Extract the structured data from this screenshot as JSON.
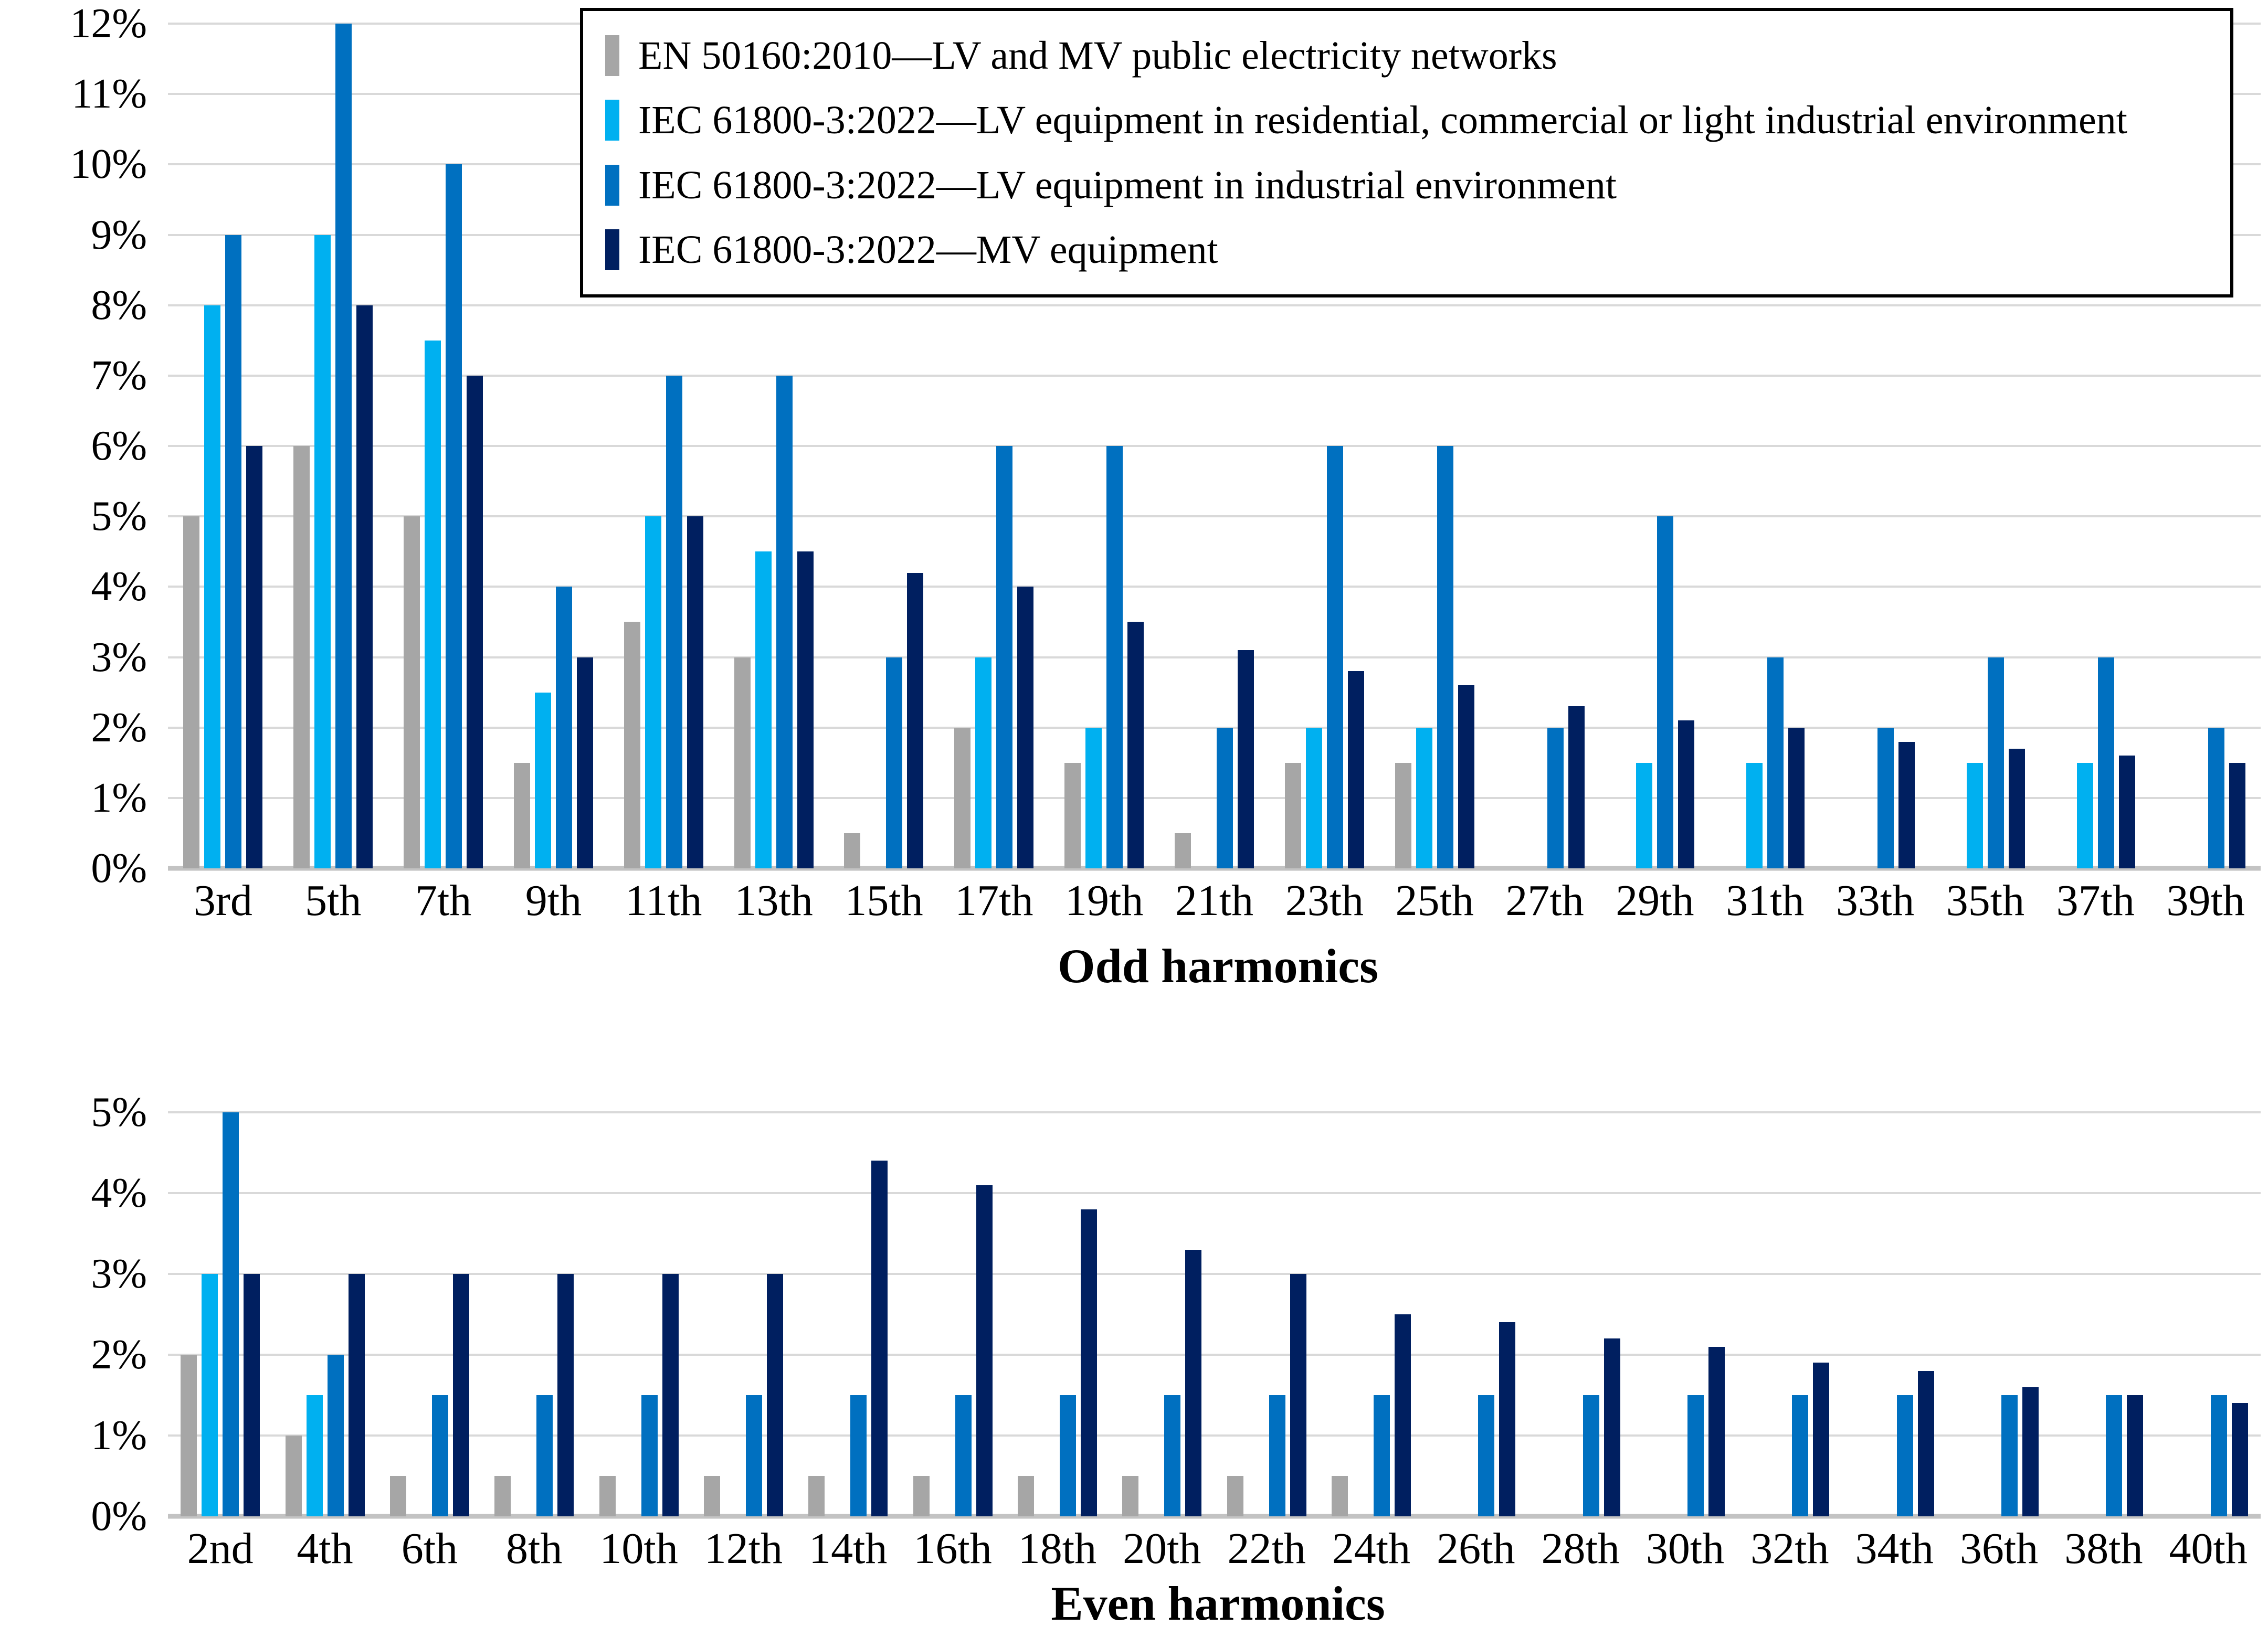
{
  "colors": {
    "series_gray": "#A6A6A6",
    "series_light_blue": "#00B0F0",
    "series_blue": "#0070C0",
    "series_navy": "#001F60",
    "gridline": "#D9D9D9",
    "axis_line": "#C3C3C3",
    "text": "#000000",
    "legend_border": "#000000",
    "background": "#FFFFFF"
  },
  "legend": {
    "items": [
      {
        "label": "EN 50160:2010—LV and MV public electricity networks",
        "color": "#A6A6A6"
      },
      {
        "label": "IEC 61800-3:2022—LV equipment in residential, commercial or light industrial environment",
        "color": "#00B0F0"
      },
      {
        "label": "IEC 61800-3:2022—LV equipment in industrial environment",
        "color": "#0070C0"
      },
      {
        "label": "IEC 61800-3:2022—MV equipment",
        "color": "#001F60"
      }
    ]
  },
  "chart_data": [
    {
      "type": "bar",
      "title": "Odd harmonics",
      "ylim": [
        0,
        12
      ],
      "ytick_step": 1,
      "ytick_suffix": "%",
      "grid": true,
      "legend_position": "top-right-inside",
      "categories": [
        "3rd",
        "5th",
        "7th",
        "9th",
        "11th",
        "13th",
        "15th",
        "17th",
        "19th",
        "21th",
        "23th",
        "25th",
        "27th",
        "29th",
        "31th",
        "33th",
        "35th",
        "37th",
        "39th"
      ],
      "series": [
        {
          "name": "EN 50160:2010—LV and MV public electricity networks",
          "color": "#A6A6A6",
          "values": [
            5,
            6,
            5,
            1.5,
            3.5,
            3,
            0.5,
            2,
            1.5,
            0.5,
            1.5,
            1.5,
            0,
            0,
            0,
            0,
            0,
            0,
            0
          ]
        },
        {
          "name": "IEC 61800-3:2022—LV equipment in residential, commercial or light industrial environment",
          "color": "#00B0F0",
          "values": [
            8,
            9,
            7.5,
            2.5,
            5,
            4.5,
            0,
            3,
            2,
            0,
            2,
            2,
            0,
            1.5,
            1.5,
            0,
            1.5,
            1.5,
            0
          ]
        },
        {
          "name": "IEC 61800-3:2022—LV equipment in industrial environment",
          "color": "#0070C0",
          "values": [
            9,
            12,
            10,
            4,
            7,
            7,
            3,
            6,
            6,
            2,
            6,
            6,
            2,
            5,
            3,
            2,
            3,
            3,
            2
          ]
        },
        {
          "name": "IEC 61800-3:2022—MV equipment",
          "color": "#001F60",
          "values": [
            6,
            8,
            7,
            3,
            5,
            4.5,
            4.2,
            4,
            3.5,
            3.1,
            2.8,
            2.6,
            2.3,
            2.1,
            2,
            1.8,
            1.7,
            1.6,
            1.5
          ]
        }
      ]
    },
    {
      "type": "bar",
      "title": "Even harmonics",
      "ylim": [
        0,
        5
      ],
      "ytick_step": 1,
      "ytick_suffix": "%",
      "grid": true,
      "categories": [
        "2nd",
        "4th",
        "6th",
        "8th",
        "10th",
        "12th",
        "14th",
        "16th",
        "18th",
        "20th",
        "22th",
        "24th",
        "26th",
        "28th",
        "30th",
        "32th",
        "34th",
        "36th",
        "38th",
        "40th"
      ],
      "series": [
        {
          "name": "EN 50160:2010—LV and MV public electricity networks",
          "color": "#A6A6A6",
          "values": [
            2,
            1,
            0.5,
            0.5,
            0.5,
            0.5,
            0.5,
            0.5,
            0.5,
            0.5,
            0.5,
            0.5,
            0,
            0,
            0,
            0,
            0,
            0,
            0,
            0
          ]
        },
        {
          "name": "IEC 61800-3:2022—LV equipment in residential, commercial or light industrial environment",
          "color": "#00B0F0",
          "values": [
            3,
            1.5,
            0,
            0,
            0,
            0,
            0,
            0,
            0,
            0,
            0,
            0,
            0,
            0,
            0,
            0,
            0,
            0,
            0,
            0
          ]
        },
        {
          "name": "IEC 61800-3:2022—LV equipment in industrial environment",
          "color": "#0070C0",
          "values": [
            5,
            2,
            1.5,
            1.5,
            1.5,
            1.5,
            1.5,
            1.5,
            1.5,
            1.5,
            1.5,
            1.5,
            1.5,
            1.5,
            1.5,
            1.5,
            1.5,
            1.5,
            1.5,
            1.5
          ]
        },
        {
          "name": "IEC 61800-3:2022—MV equipment",
          "color": "#001F60",
          "values": [
            3,
            3,
            3,
            3,
            3,
            3,
            4.4,
            4.1,
            3.8,
            3.3,
            3,
            2.5,
            2.4,
            2.2,
            2.1,
            1.9,
            1.8,
            1.6,
            1.5,
            1.4
          ]
        }
      ]
    }
  ]
}
